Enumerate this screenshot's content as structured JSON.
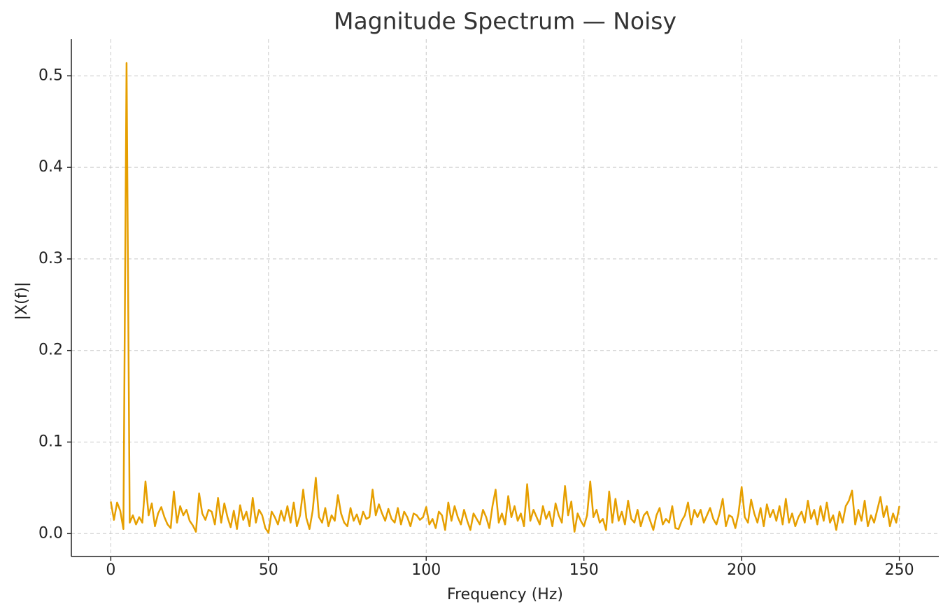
{
  "chart_data": {
    "type": "line",
    "title": "Magnitude Spectrum — Noisy",
    "x_label": "Frequency (Hz)",
    "y_label": "|X(f)|",
    "x": [
      0,
      1,
      2,
      3,
      4,
      5,
      6,
      7,
      8,
      9,
      10,
      11,
      12,
      13,
      14,
      15,
      16,
      17,
      18,
      19,
      20,
      21,
      22,
      23,
      24,
      25,
      26,
      27,
      28,
      29,
      30,
      31,
      32,
      33,
      34,
      35,
      36,
      37,
      38,
      39,
      40,
      41,
      42,
      43,
      44,
      45,
      46,
      47,
      48,
      49,
      50,
      51,
      52,
      53,
      54,
      55,
      56,
      57,
      58,
      59,
      60,
      61,
      62,
      63,
      64,
      65,
      66,
      67,
      68,
      69,
      70,
      71,
      72,
      73,
      74,
      75,
      76,
      77,
      78,
      79,
      80,
      81,
      82,
      83,
      84,
      85,
      86,
      87,
      88,
      89,
      90,
      91,
      92,
      93,
      94,
      95,
      96,
      97,
      98,
      99,
      100,
      101,
      102,
      103,
      104,
      105,
      106,
      107,
      108,
      109,
      110,
      111,
      112,
      113,
      114,
      115,
      116,
      117,
      118,
      119,
      120,
      121,
      122,
      123,
      124,
      125,
      126,
      127,
      128,
      129,
      130,
      131,
      132,
      133,
      134,
      135,
      136,
      137,
      138,
      139,
      140,
      141,
      142,
      143,
      144,
      145,
      146,
      147,
      148,
      149,
      150,
      151,
      152,
      153,
      154,
      155,
      156,
      157,
      158,
      159,
      160,
      161,
      162,
      163,
      164,
      165,
      166,
      167,
      168,
      169,
      170,
      171,
      172,
      173,
      174,
      175,
      176,
      177,
      178,
      179,
      180,
      181,
      182,
      183,
      184,
      185,
      186,
      187,
      188,
      189,
      190,
      191,
      192,
      193,
      194,
      195,
      196,
      197,
      198,
      199,
      200,
      201,
      202,
      203,
      204,
      205,
      206,
      207,
      208,
      209,
      210,
      211,
      212,
      213,
      214,
      215,
      216,
      217,
      218,
      219,
      220,
      221,
      222,
      223,
      224,
      225,
      226,
      227,
      228,
      229,
      230,
      231,
      232,
      233,
      234,
      235,
      236,
      237,
      238,
      239,
      240,
      241,
      242,
      243,
      244,
      245,
      246,
      247,
      248,
      249,
      250
    ],
    "series": [
      {
        "name": "|X(f)|",
        "color": "#e69f00",
        "values": [
          0.035,
          0.015,
          0.034,
          0.025,
          0.005,
          0.514,
          0.012,
          0.02,
          0.01,
          0.018,
          0.012,
          0.057,
          0.02,
          0.033,
          0.008,
          0.022,
          0.029,
          0.018,
          0.01,
          0.006,
          0.046,
          0.012,
          0.03,
          0.02,
          0.026,
          0.014,
          0.009,
          0.002,
          0.044,
          0.022,
          0.015,
          0.026,
          0.024,
          0.01,
          0.039,
          0.012,
          0.033,
          0.018,
          0.007,
          0.025,
          0.005,
          0.031,
          0.015,
          0.024,
          0.008,
          0.039,
          0.012,
          0.026,
          0.02,
          0.006,
          0.001,
          0.024,
          0.018,
          0.01,
          0.025,
          0.014,
          0.03,
          0.012,
          0.034,
          0.008,
          0.02,
          0.048,
          0.017,
          0.005,
          0.025,
          0.061,
          0.018,
          0.012,
          0.028,
          0.008,
          0.02,
          0.014,
          0.042,
          0.022,
          0.012,
          0.008,
          0.028,
          0.014,
          0.021,
          0.01,
          0.024,
          0.016,
          0.018,
          0.048,
          0.02,
          0.032,
          0.022,
          0.014,
          0.027,
          0.016,
          0.012,
          0.028,
          0.01,
          0.024,
          0.018,
          0.008,
          0.022,
          0.02,
          0.015,
          0.018,
          0.029,
          0.01,
          0.016,
          0.006,
          0.024,
          0.02,
          0.004,
          0.034,
          0.014,
          0.03,
          0.018,
          0.01,
          0.026,
          0.014,
          0.004,
          0.022,
          0.016,
          0.01,
          0.026,
          0.018,
          0.006,
          0.03,
          0.048,
          0.012,
          0.022,
          0.01,
          0.041,
          0.018,
          0.03,
          0.014,
          0.022,
          0.008,
          0.054,
          0.014,
          0.026,
          0.018,
          0.01,
          0.03,
          0.016,
          0.024,
          0.008,
          0.033,
          0.02,
          0.012,
          0.052,
          0.02,
          0.035,
          0.002,
          0.022,
          0.014,
          0.008,
          0.02,
          0.057,
          0.018,
          0.026,
          0.012,
          0.016,
          0.004,
          0.046,
          0.012,
          0.038,
          0.014,
          0.024,
          0.01,
          0.036,
          0.016,
          0.012,
          0.026,
          0.008,
          0.02,
          0.024,
          0.014,
          0.004,
          0.02,
          0.028,
          0.01,
          0.016,
          0.012,
          0.03,
          0.006,
          0.005,
          0.014,
          0.02,
          0.034,
          0.01,
          0.026,
          0.018,
          0.026,
          0.012,
          0.02,
          0.028,
          0.016,
          0.01,
          0.022,
          0.038,
          0.008,
          0.02,
          0.018,
          0.006,
          0.022,
          0.051,
          0.018,
          0.012,
          0.037,
          0.022,
          0.012,
          0.028,
          0.008,
          0.032,
          0.018,
          0.026,
          0.014,
          0.03,
          0.01,
          0.038,
          0.012,
          0.022,
          0.008,
          0.018,
          0.024,
          0.012,
          0.036,
          0.016,
          0.026,
          0.01,
          0.03,
          0.014,
          0.034,
          0.012,
          0.02,
          0.004,
          0.024,
          0.012,
          0.03,
          0.036,
          0.047,
          0.01,
          0.026,
          0.014,
          0.036,
          0.008,
          0.02,
          0.012,
          0.026,
          0.04,
          0.018,
          0.03,
          0.008,
          0.022,
          0.012,
          0.03
        ]
      }
    ],
    "xlim": [
      -12.5,
      262.5
    ],
    "ylim": [
      -0.025,
      0.54
    ],
    "xticks": [
      0,
      50,
      100,
      150,
      200,
      250
    ],
    "yticks": [
      {
        "value": 0,
        "label": "0.0"
      },
      0.1,
      0.2,
      0.3,
      0.4,
      0.5
    ],
    "grid": true
  }
}
